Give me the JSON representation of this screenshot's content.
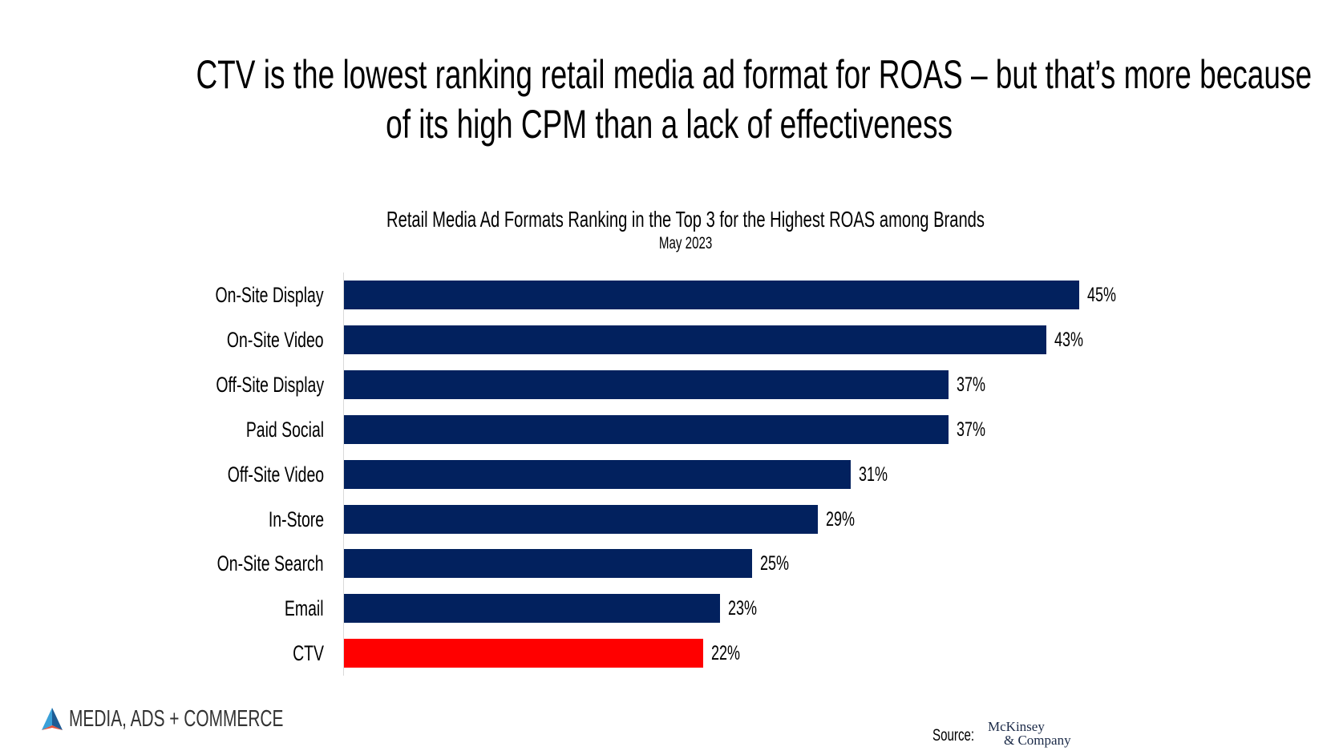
{
  "headline": {
    "line1": "CTV is the lowest ranking retail media ad format for ROAS – but that’s more because",
    "line2": "of its high CPM than a lack of effectiveness"
  },
  "chart_data": {
    "type": "bar",
    "orientation": "horizontal",
    "title": "Retail Media Ad Formats Ranking in the Top 3 for the Highest ROAS among Brands",
    "subtitle": "May 2023",
    "categories": [
      "On-Site Display",
      "On-Site Video",
      "Off-Site Display",
      "Paid Social",
      "Off-Site Video",
      "In-Store",
      "On-Site Search",
      "Email",
      "CTV"
    ],
    "values": [
      45,
      43,
      37,
      37,
      31,
      29,
      25,
      23,
      22
    ],
    "labels": [
      "45%",
      "43%",
      "37%",
      "37%",
      "31%",
      "29%",
      "25%",
      "23%",
      "22%"
    ],
    "highlight": "CTV",
    "colors": {
      "default": "#02215e",
      "highlight": "#ff0000"
    },
    "xlim": [
      0,
      45
    ],
    "grid": false,
    "xlabel": "",
    "ylabel": ""
  },
  "footer": {
    "brand": "MEDIA, ADS + COMMERCE",
    "source_label": "Source:",
    "source_line1": "McKinsey",
    "source_line2": "& Company"
  }
}
